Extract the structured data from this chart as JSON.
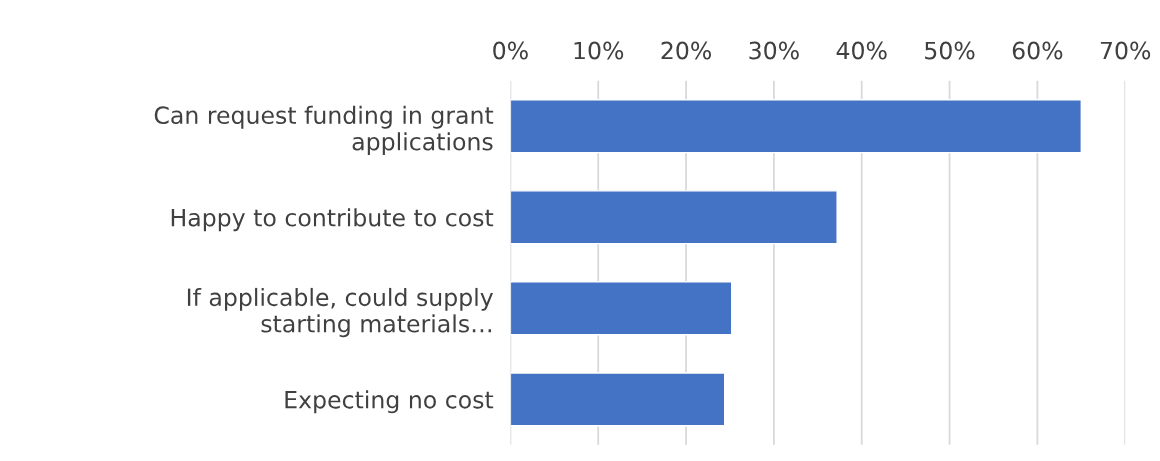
{
  "chart_data": {
    "type": "bar",
    "orientation": "horizontal",
    "categories": [
      "Can request funding in grant\napplications",
      "Happy to contribute to cost",
      "If applicable, could supply\nstarting materials…",
      "Expecting no cost"
    ],
    "values": [
      65.0,
      37.2,
      25.2,
      24.4
    ],
    "color": "#4472c4",
    "xlim": [
      0,
      70
    ],
    "xticks": [
      {
        "value": 0,
        "label": "0%"
      },
      {
        "value": 10,
        "label": "10%"
      },
      {
        "value": 20,
        "label": "20%"
      },
      {
        "value": 30,
        "label": "30%"
      },
      {
        "value": 40,
        "label": "40%"
      },
      {
        "value": 50,
        "label": "50%"
      },
      {
        "value": 60,
        "label": "60%"
      },
      {
        "value": 70,
        "label": "70%"
      }
    ],
    "grid": "x"
  }
}
